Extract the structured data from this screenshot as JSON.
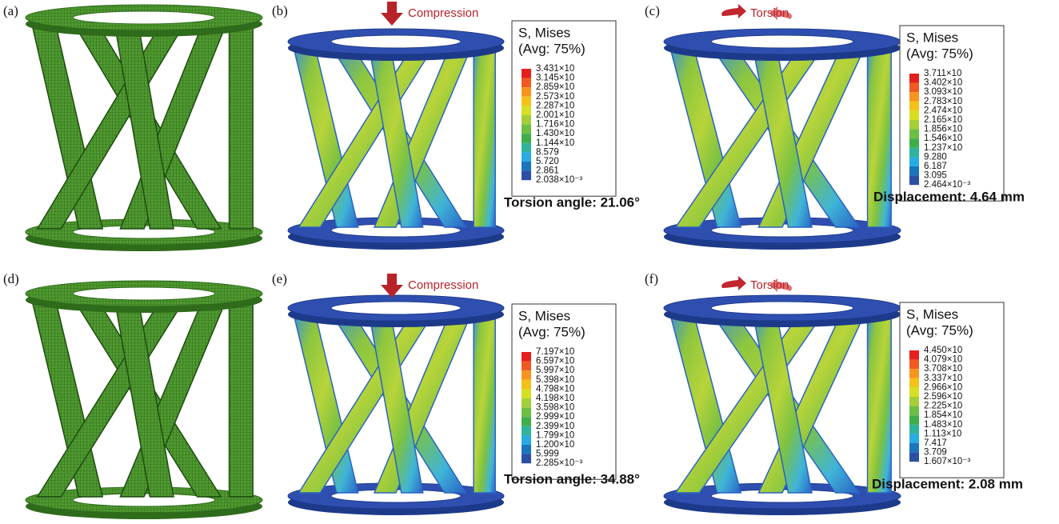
{
  "panels": [
    {
      "label": "(a)"
    },
    {
      "label": "(b)",
      "load": "Compression",
      "legend": {
        "title": "S, Mises",
        "average": "(Avg: 75%)",
        "levels": [
          "3.431×10",
          "3.145×10",
          "2.859×10",
          "2.573×10",
          "2.287×10",
          "2.001×10",
          "1.716×10",
          "1.430×10",
          "1.144×10",
          "8.579",
          "5.720",
          "2.861",
          "2.038×10⁻³"
        ]
      },
      "result": "Torsion angle: 21.06°"
    },
    {
      "label": "(c)",
      "load": "Torsion",
      "legend": {
        "title": "S, Mises",
        "average": "(Avg: 75%)",
        "levels": [
          "3.711×10",
          "3.402×10",
          "3.093×10",
          "2.783×10",
          "2.474×10",
          "2.165×10",
          "1.856×10",
          "1.546×10",
          "1.237×10",
          "9.280",
          "6.187",
          "3.095",
          "2.464×10⁻³"
        ]
      },
      "result": "Displacement: 4.64 mm"
    },
    {
      "label": "(d)"
    },
    {
      "label": "(e)",
      "load": "Compression",
      "legend": {
        "title": "S, Mises",
        "average": "(Avg: 75%)",
        "levels": [
          "7.197×10",
          "6.597×10",
          "5.997×10",
          "5.398×10",
          "4.798×10",
          "4.198×10",
          "3.598×10",
          "2.999×10",
          "2.399×10",
          "1.799×10",
          "1.200×10",
          "5.999",
          "2.285×10⁻³"
        ]
      },
      "result": "Torsion angle: 34.88°"
    },
    {
      "label": "(f)",
      "load": "Torsion",
      "legend": {
        "title": "S, Mises",
        "average": "(Avg: 75%)",
        "levels": [
          "4.450×10",
          "4.079×10",
          "3.708×10",
          "3.337×10",
          "2.966×10",
          "2.596×10",
          "2.225×10",
          "1.854×10",
          "1.483×10",
          "1.113×10",
          "7.417",
          "3.709",
          "1.607×10⁻³"
        ]
      },
      "result": "Displacement: 2.08 mm"
    }
  ]
}
